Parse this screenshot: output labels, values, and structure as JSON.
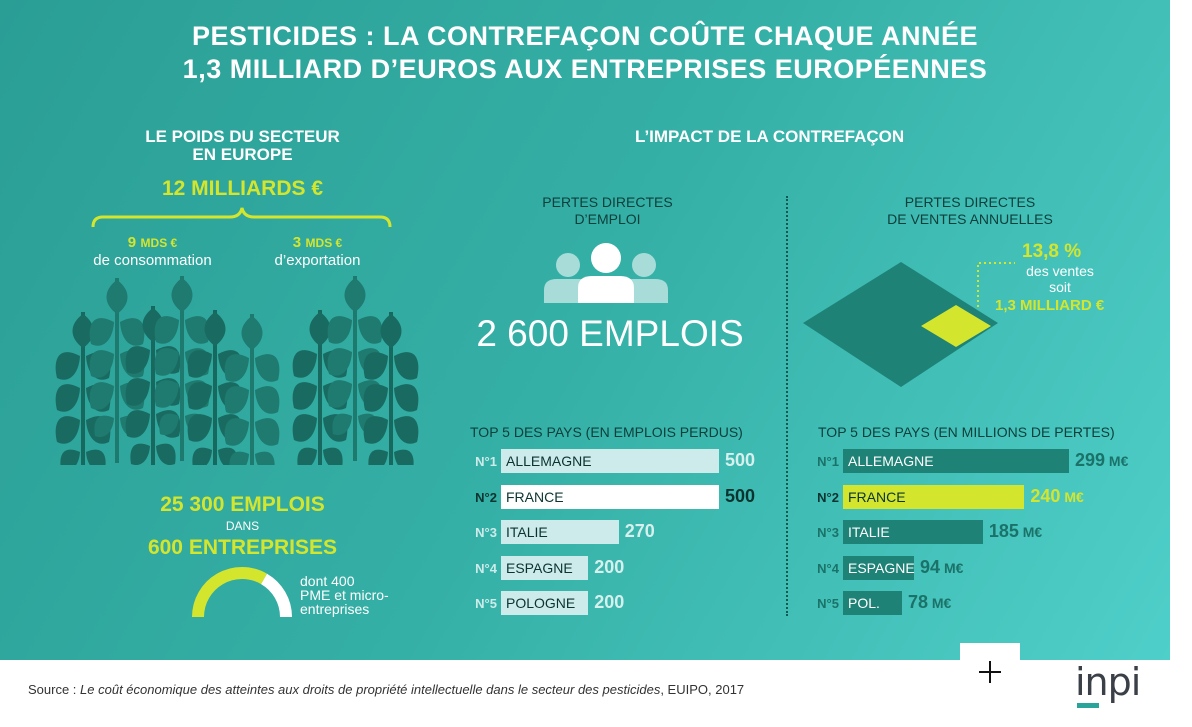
{
  "title": {
    "line1": "PESTICIDES : LA CONTREFAÇON COÛTE CHAQUE ANNÉE",
    "line2": "1,3 MILLIARD D’EUROS AUX ENTREPRISES EUROPÉENNES"
  },
  "left": {
    "heading1": "LE POIDS DU SECTEUR",
    "heading2": "EN EUROPE",
    "total": "12 MILLIARDS €",
    "consumption_value": "9",
    "consumption_unit": "MDS €",
    "consumption_label": "de consommation",
    "export_value": "3",
    "export_unit": "MDS €",
    "export_label": "d’exportation",
    "jobs": "25 300 EMPLOIS",
    "dans": "DANS",
    "companies": "600 ENTREPRISES",
    "sme_note_1": "dont 400",
    "sme_note_2": "PME et micro-",
    "sme_note_3": "entreprises",
    "sme_fraction": 0.667
  },
  "right": {
    "heading": "L’IMPACT DE LA CONTREFAÇON",
    "jobs_panel": {
      "title1": "PERTES DIRECTES",
      "title2": "D’EMPLOI",
      "big": "2 600 EMPLOIS",
      "top_title": "TOP 5 DES PAYS (EN EMPLOIS PERDUS)"
    },
    "sales_panel": {
      "title1": "PERTES DIRECTES",
      "title2": "DE VENTES ANNUELLES",
      "pct": "13,8 %",
      "pct_label1": "des ventes",
      "pct_label2": "soit",
      "amount": "1,3 MILLIARD €",
      "top_title": "TOP 5 DES PAYS (EN MILLIONS DE PERTES)"
    }
  },
  "chart_data": [
    {
      "type": "bar",
      "title": "TOP 5 DES PAYS (EN EMPLOIS PERDUS)",
      "ranks": [
        "N°1",
        "N°2",
        "N°3",
        "N°4",
        "N°5"
      ],
      "categories": [
        "ALLEMAGNE",
        "FRANCE",
        "ITALIE",
        "ESPAGNE",
        "POLOGNE"
      ],
      "values": [
        500,
        500,
        270,
        200,
        200
      ],
      "value_labels": [
        "500",
        "500",
        "270",
        "200",
        "200"
      ],
      "highlight_index": 1
    },
    {
      "type": "bar",
      "title": "TOP 5 DES PAYS (EN MILLIONS DE PERTES)",
      "ranks": [
        "N°1",
        "N°2",
        "N°3",
        "N°4",
        "N°5"
      ],
      "categories": [
        "ALLEMAGNE",
        "FRANCE",
        "ITALIE",
        "ESPAGNE",
        "POL."
      ],
      "values": [
        299,
        240,
        185,
        94,
        78
      ],
      "value_labels": [
        "299",
        "240",
        "185",
        "94",
        "78"
      ],
      "unit": "M€",
      "highlight_index": 1
    }
  ],
  "footer": {
    "source_prefix": "Source : ",
    "source_title": "Le coût économique des atteintes aux droits de propriété intellectuelle dans le secteur des pesticides",
    "source_suffix": ", EUIPO, 2017",
    "logo": "inpi",
    "plus_icon": "plus-icon"
  },
  "colors": {
    "background_light": "#4fcfc9",
    "background_dark": "#2a9e95",
    "dark_teal": "#1e8276",
    "lime": "#d4e52e",
    "light_bar": "#cdebea"
  }
}
